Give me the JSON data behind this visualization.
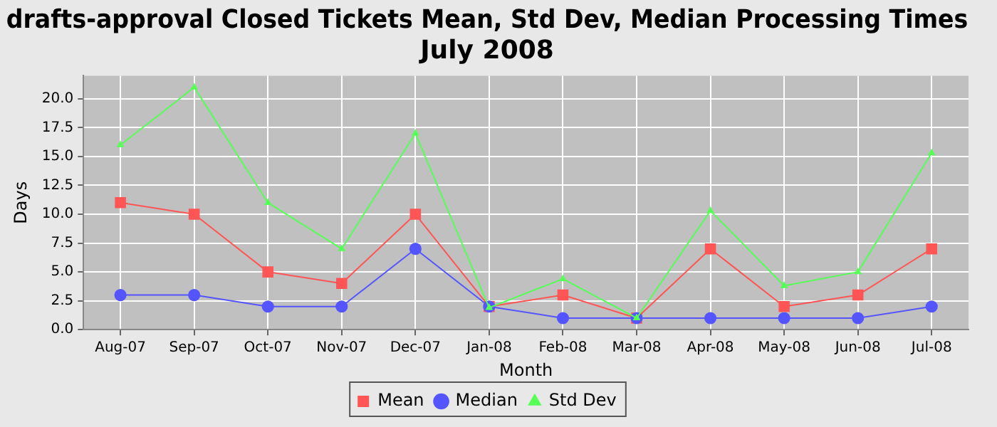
{
  "chart_data": {
    "type": "line",
    "title": [
      "drafts-approval Closed Tickets Mean, Std Dev, Median Processing Times",
      "July 2008"
    ],
    "xlabel": "Month",
    "ylabel": "Days",
    "categories": [
      "Aug-07",
      "Sep-07",
      "Oct-07",
      "Nov-07",
      "Dec-07",
      "Jan-08",
      "Feb-08",
      "Mar-08",
      "Apr-08",
      "May-08",
      "Jun-08",
      "Jul-08"
    ],
    "series": [
      {
        "name": "Mean",
        "color": "#ff5555",
        "marker": "square",
        "values": [
          11,
          10,
          5,
          4,
          10,
          2,
          3,
          1,
          7,
          2,
          3,
          7
        ]
      },
      {
        "name": "Median",
        "color": "#5555ff",
        "marker": "circle",
        "values": [
          3,
          3,
          2,
          2,
          7,
          2,
          1,
          1,
          1,
          1,
          1,
          2
        ]
      },
      {
        "name": "Std Dev",
        "color": "#55ff55",
        "marker": "triangle",
        "values": [
          16,
          21,
          11,
          7,
          17,
          1.9,
          4.4,
          1,
          10.3,
          3.8,
          5,
          15.3
        ]
      }
    ],
    "ylim": [
      0,
      22
    ],
    "yticks": [
      {
        "value": 0,
        "label": "0.0"
      },
      {
        "value": 2.5,
        "label": "2.5"
      },
      {
        "value": 5,
        "label": "5.0"
      },
      {
        "value": 7.5,
        "label": "7.5"
      },
      {
        "value": 10,
        "label": "10.0"
      },
      {
        "value": 12.5,
        "label": "12.5"
      },
      {
        "value": 15,
        "label": "15.0"
      },
      {
        "value": 17.5,
        "label": "17.5"
      },
      {
        "value": 20,
        "label": "20.0"
      }
    ],
    "grid": true,
    "legend": "bottom",
    "line_style": "solid"
  }
}
